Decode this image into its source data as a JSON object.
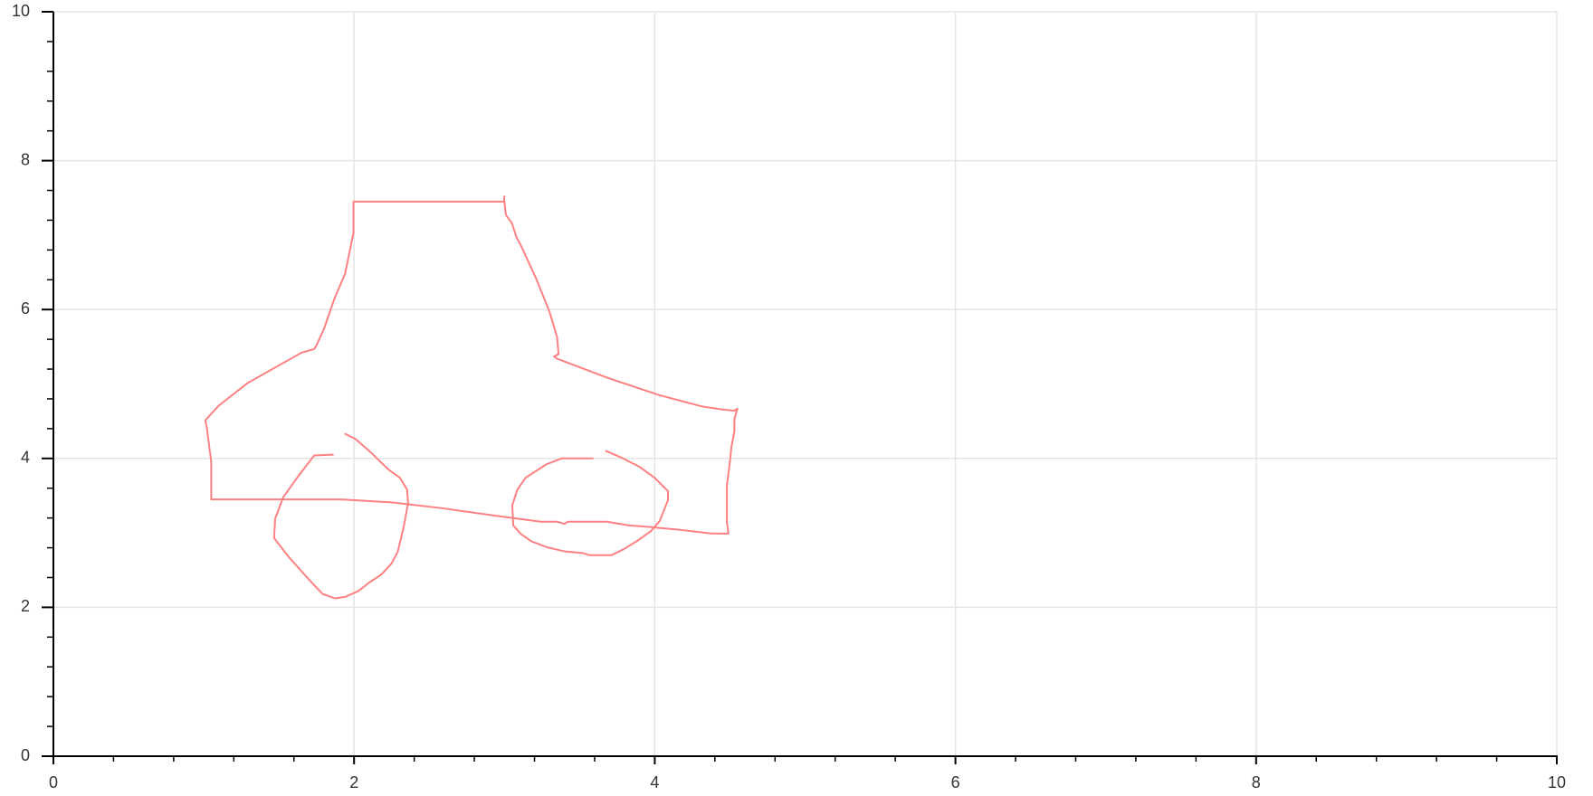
{
  "chart_data": {
    "type": "line",
    "grid": true,
    "xlim": [
      0,
      10
    ],
    "ylim": [
      0,
      10
    ],
    "xticks": [
      0,
      2,
      4,
      6,
      8,
      10
    ],
    "yticks": [
      0,
      2,
      4,
      6,
      8,
      10
    ],
    "xminorticks": [
      0.4,
      0.8,
      1.2,
      1.6,
      2.4,
      2.8,
      3.2,
      3.6,
      4.4,
      4.8,
      5.2,
      5.6,
      6.4,
      6.8,
      7.2,
      7.6,
      8.4,
      8.8,
      9.2,
      9.6
    ],
    "yminorticks": [
      0.4,
      0.8,
      1.2,
      1.6,
      2.4,
      2.8,
      3.2,
      3.6,
      4.4,
      4.8,
      5.2,
      5.6,
      6.4,
      6.8,
      7.2,
      7.6,
      8.4,
      8.8,
      9.2,
      9.6
    ],
    "series": [
      {
        "color": "#ff8080",
        "x": [
          3.0,
          2.997,
          1.996,
          1.996,
          1.94,
          1.87,
          1.8,
          1.75,
          1.735,
          1.65,
          1.29,
          1.1,
          1.01,
          1.02,
          1.05,
          1.05,
          1.91,
          2.25,
          2.59,
          2.94,
          3.24,
          3.35,
          3.4,
          3.42,
          3.68,
          3.83,
          3.96,
          4.17,
          4.38,
          4.49,
          4.48,
          4.48,
          4.5,
          4.51,
          4.53,
          4.53,
          4.55,
          4.53,
          4.44,
          4.31,
          4.03,
          3.69,
          3.35,
          3.33,
          3.36,
          3.35,
          3.3,
          3.21,
          3.11,
          3.08,
          3.05,
          3.01,
          3.0
        ],
        "values": [
          7.52,
          7.45,
          7.45,
          7.03,
          6.48,
          6.15,
          5.74,
          5.52,
          5.47,
          5.42,
          5.01,
          4.71,
          4.51,
          4.42,
          3.95,
          3.45,
          3.45,
          3.41,
          3.33,
          3.23,
          3.15,
          3.15,
          3.12,
          3.15,
          3.15,
          3.1,
          3.08,
          3.04,
          2.99,
          2.99,
          3.14,
          3.64,
          3.96,
          4.15,
          4.37,
          4.53,
          4.67,
          4.64,
          4.66,
          4.7,
          4.85,
          5.08,
          5.34,
          5.37,
          5.4,
          5.63,
          5.97,
          6.42,
          6.86,
          6.97,
          7.16,
          7.27,
          7.45
        ]
      },
      {
        "color": "#ff8080",
        "x": [
          1.859,
          1.735,
          1.632,
          1.529,
          1.475,
          1.468,
          1.564,
          1.701,
          1.79,
          1.872,
          1.941,
          2.03,
          2.099,
          2.181,
          2.25,
          2.291,
          2.332,
          2.359,
          2.353,
          2.305,
          2.229,
          2.112,
          2.01,
          1.941
        ],
        "values": [
          4.05,
          4.04,
          3.77,
          3.48,
          3.19,
          2.93,
          2.68,
          2.37,
          2.18,
          2.12,
          2.14,
          2.22,
          2.33,
          2.44,
          2.59,
          2.75,
          3.1,
          3.4,
          3.58,
          3.74,
          3.85,
          4.08,
          4.26,
          4.33
        ]
      },
      {
        "color": "#ff8080",
        "x": [
          3.587,
          3.381,
          3.278,
          3.141,
          3.086,
          3.052,
          3.059,
          3.107,
          3.176,
          3.278,
          3.402,
          3.519,
          3.567,
          3.711,
          3.793,
          3.882,
          3.978,
          4.033,
          4.088,
          4.088,
          3.999,
          3.896,
          3.779,
          3.676
        ],
        "values": [
          4.0,
          4.0,
          3.92,
          3.74,
          3.58,
          3.37,
          3.1,
          2.99,
          2.89,
          2.81,
          2.75,
          2.73,
          2.7,
          2.7,
          2.78,
          2.89,
          3.03,
          3.16,
          3.44,
          3.56,
          3.74,
          3.89,
          4.01,
          4.1
        ]
      }
    ]
  }
}
